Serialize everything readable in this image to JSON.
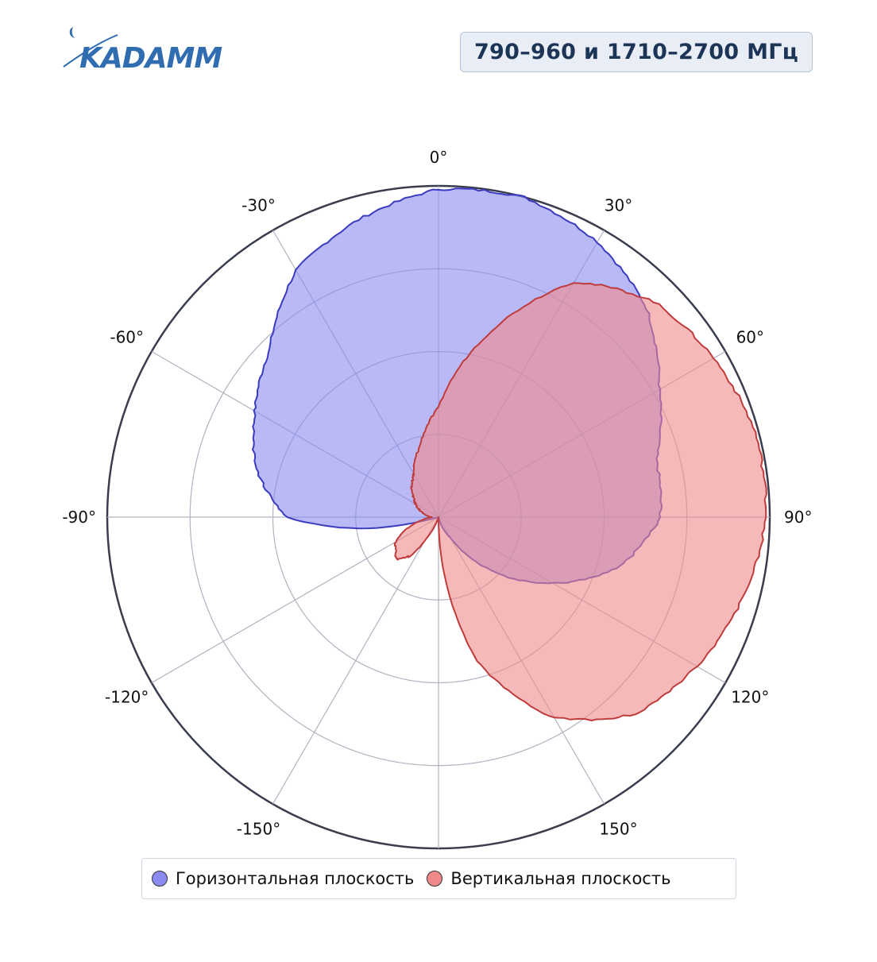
{
  "logo": {
    "text": "KADAMM",
    "color": "#2f6db0"
  },
  "badge": {
    "text": "790–960 и 1710–2700 МГц"
  },
  "chart_data": {
    "type": "polar-area",
    "angular_tick_labels": [
      "0°",
      "30°",
      "60°",
      "90°",
      "120°",
      "150°",
      "-150°",
      "-120°",
      "-90°",
      "-60°",
      "-30°"
    ],
    "angular_ticks_deg": [
      0,
      30,
      60,
      90,
      120,
      150,
      -150,
      -120,
      -90,
      -60,
      -30
    ],
    "radial_range": [
      0,
      1
    ],
    "radial_rings": [
      0.25,
      0.5,
      0.75,
      1.0
    ],
    "grid": true,
    "legend_position": "bottom",
    "series": [
      {
        "name": "Горизонтальная плоскость",
        "color": "#8a8af0",
        "stroke": "#3b3bc0",
        "angles_deg": [
          -180,
          -150,
          -120,
          -105,
          -100,
          -90,
          -75,
          -60,
          -45,
          -30,
          -15,
          0,
          15,
          30,
          45,
          60,
          75,
          90,
          105,
          120,
          135,
          150,
          165,
          180
        ],
        "values": [
          0,
          0,
          0,
          0.01,
          0.19,
          0.46,
          0.57,
          0.64,
          0.72,
          0.86,
          0.93,
          0.99,
          1.0,
          0.96,
          0.89,
          0.77,
          0.68,
          0.67,
          0.57,
          0.4,
          0.23,
          0.07,
          0.01,
          0
        ]
      },
      {
        "name": "Вертикальная плоскость",
        "color": "#f08a8a",
        "stroke": "#c03b3b",
        "angles_deg": [
          -180,
          -160,
          -150,
          -145,
          -135,
          -120,
          -100,
          -90,
          -70,
          -50,
          -30,
          -15,
          0,
          15,
          30,
          45,
          60,
          75,
          90,
          105,
          120,
          135,
          150,
          165,
          180
        ],
        "values": [
          0,
          0.01,
          0.08,
          0.14,
          0.18,
          0.15,
          0.05,
          0.02,
          0.06,
          0.1,
          0.15,
          0.22,
          0.33,
          0.57,
          0.82,
          0.92,
          0.96,
          0.99,
          0.99,
          0.95,
          0.9,
          0.84,
          0.7,
          0.45,
          0
        ]
      }
    ]
  }
}
